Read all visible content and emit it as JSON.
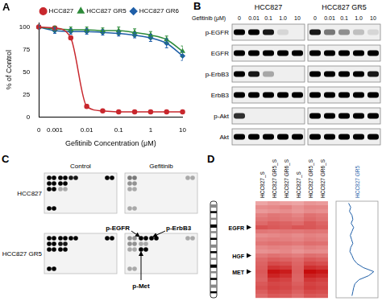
{
  "panel_labels": [
    "A",
    "B",
    "C",
    "D"
  ],
  "chart_data": {
    "type": "line",
    "categories": [
      "0",
      "0.001",
      null,
      "0.01",
      null,
      "0.1",
      null,
      "1",
      null,
      "10"
    ],
    "x_label": "Gefitinib Concentration (μM)",
    "y_label": "% of Control",
    "ylim": [
      0,
      105
    ],
    "yticks": [
      0,
      25,
      50,
      75,
      100
    ],
    "grid": false,
    "legend": "upper right",
    "series": [
      {
        "name": "HCC827",
        "color": "#c8282e",
        "marker": "circle",
        "values": [
          100,
          99,
          88,
          12,
          7,
          6,
          6,
          6,
          6,
          6
        ],
        "errors": [
          1,
          1,
          2,
          2,
          1,
          1,
          1,
          1,
          1,
          1
        ]
      },
      {
        "name": "HCC827 GR5",
        "color": "#2e8b3a",
        "marker": "triangle",
        "values": [
          100,
          98,
          97,
          97,
          96,
          96,
          94,
          91,
          86,
          73
        ],
        "errors": [
          2,
          3,
          3,
          3,
          3,
          4,
          4,
          4,
          4,
          6
        ]
      },
      {
        "name": "HCC827 GR6",
        "color": "#1f5fa8",
        "marker": "diamond",
        "values": [
          100,
          96,
          95,
          95,
          94,
          93,
          91,
          88,
          82,
          68
        ],
        "errors": [
          2,
          3,
          3,
          3,
          3,
          3,
          3,
          4,
          5,
          5
        ]
      }
    ]
  },
  "blot": {
    "treatment_label": "Gefitinib (μM)",
    "rows": [
      "p-EGFR",
      "EGFR",
      "p-ErbB3",
      "ErbB3",
      "p-Akt",
      "Akt"
    ],
    "groups": [
      {
        "title": "HCC827",
        "lanes": [
          "0",
          "0.01",
          "0.1",
          "1.0",
          "10"
        ],
        "band_intensity": [
          [
            1,
            1,
            0.9,
            0.1,
            0
          ],
          [
            1,
            1,
            1,
            1,
            1
          ],
          [
            1,
            0.9,
            0.3,
            0,
            0
          ],
          [
            1,
            1,
            1,
            1,
            1
          ],
          [
            0.8,
            0,
            0,
            0,
            0
          ],
          [
            1,
            1,
            1,
            1,
            1
          ]
        ]
      },
      {
        "title": "HCC827 GR5",
        "lanes": [
          "0",
          "0.01",
          "0.1",
          "1.0",
          "10"
        ],
        "band_intensity": [
          [
            0.9,
            0.5,
            0.4,
            0.2,
            0.1
          ],
          [
            1,
            1,
            1,
            1,
            1
          ],
          [
            1,
            1,
            1,
            1,
            0.9
          ],
          [
            1,
            1,
            1,
            1,
            1
          ],
          [
            1,
            1,
            1,
            1,
            1
          ],
          [
            1,
            1,
            1,
            1,
            1
          ]
        ]
      }
    ]
  },
  "array": {
    "columns": [
      "Control",
      "Gefitinib"
    ],
    "rows": [
      "HCC827",
      "HCC827 GR5"
    ],
    "spots": [
      [
        [
          1,
          1,
          1,
          1,
          1,
          1,
          1,
          1,
          1,
          1,
          1,
          1,
          1,
          1,
          0.9,
          0.9,
          0.3,
          0.3
        ],
        [
          0.5,
          0.5,
          0.4,
          0.4,
          0.3,
          0.3,
          0.3,
          0.3,
          0.3,
          0.3,
          0,
          0,
          0,
          0,
          0,
          0,
          0,
          0
        ]
      ],
      [
        [
          1,
          1,
          1,
          1,
          1,
          1,
          1,
          1,
          1,
          1,
          1,
          1,
          0.9,
          0.9,
          1,
          1,
          1,
          1
        ],
        [
          0.4,
          0.4,
          0.4,
          0.4,
          0.3,
          0.3,
          0.3,
          0.3,
          0.3,
          0.3,
          {
            "value": 1,
            "label": "p-EGFR"
          },
          1,
          0.3,
          0.3,
          {
            "value": 1,
            "label": "p-ErbB3"
          },
          1,
          {
            "value": 1,
            "label": "p-Met"
          },
          1
        ]
      ]
    ]
  },
  "heatmap": {
    "columns": [
      "HCC827_S",
      "HCC827 GR5_S",
      "HCC827 GR6_S",
      "HCC827_S",
      "HCC827 GR5_S",
      "HCC827 GR6_S"
    ],
    "row_labels": [
      null,
      null,
      null,
      null,
      null,
      null,
      "EGFR",
      null,
      null,
      null,
      null,
      null,
      null,
      "HGF",
      null,
      null,
      null,
      "MET",
      null,
      null,
      null,
      null,
      null,
      null
    ],
    "cells": [
      [
        0.3,
        0.35,
        0.32,
        0.3,
        0.36,
        0.34
      ],
      [
        0.4,
        0.42,
        0.45,
        0.38,
        0.44,
        0.43
      ],
      [
        0.35,
        0.38,
        0.4,
        0.36,
        0.41,
        0.39
      ],
      [
        0.45,
        0.5,
        0.48,
        0.44,
        0.52,
        0.49
      ],
      [
        0.5,
        0.52,
        0.5,
        0.48,
        0.55,
        0.51
      ],
      [
        0.55,
        0.6,
        0.58,
        0.54,
        0.62,
        0.57
      ],
      [
        0.65,
        0.62,
        0.6,
        0.64,
        0.63,
        0.6
      ],
      [
        0.5,
        0.48,
        0.5,
        0.49,
        0.51,
        0.5
      ],
      [
        0.4,
        0.42,
        0.44,
        0.41,
        0.45,
        0.43
      ],
      [
        0.45,
        0.47,
        0.46,
        0.44,
        0.48,
        0.46
      ],
      [
        0.5,
        0.52,
        0.51,
        0.49,
        0.53,
        0.52
      ],
      [
        0.42,
        0.45,
        0.44,
        0.41,
        0.46,
        0.44
      ],
      [
        0.38,
        0.4,
        0.42,
        0.37,
        0.41,
        0.4
      ],
      [
        0.48,
        0.52,
        0.5,
        0.47,
        0.53,
        0.51
      ],
      [
        0.55,
        0.6,
        0.58,
        0.54,
        0.62,
        0.59
      ],
      [
        0.58,
        0.68,
        0.66,
        0.57,
        0.7,
        0.67
      ],
      [
        0.6,
        0.78,
        0.75,
        0.59,
        0.8,
        0.76
      ],
      [
        0.62,
        0.92,
        0.88,
        0.6,
        0.95,
        0.9
      ],
      [
        0.6,
        0.85,
        0.8,
        0.58,
        0.86,
        0.82
      ],
      [
        0.58,
        0.75,
        0.72,
        0.57,
        0.77,
        0.73
      ],
      [
        0.62,
        0.7,
        0.68,
        0.6,
        0.72,
        0.69
      ],
      [
        0.65,
        0.72,
        0.7,
        0.63,
        0.74,
        0.71
      ],
      [
        0.6,
        0.68,
        0.66,
        0.59,
        0.69,
        0.67
      ],
      [
        0.55,
        0.62,
        0.6,
        0.54,
        0.63,
        0.61
      ]
    ],
    "trace": {
      "name": "HCC827 GR5",
      "color": "#1f5fa8",
      "values": [
        0.3,
        0.35,
        0.32,
        0.38,
        0.4,
        0.36,
        0.42,
        0.38,
        0.34,
        0.37,
        0.4,
        0.35,
        0.33,
        0.38,
        0.42,
        0.5,
        0.65,
        0.9,
        0.78,
        0.55,
        0.45,
        0.42,
        0.4,
        0.38
      ]
    }
  }
}
